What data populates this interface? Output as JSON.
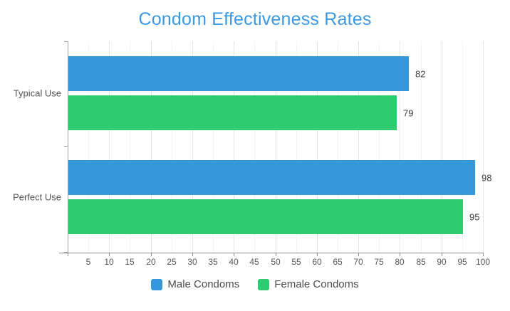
{
  "chart_data": {
    "type": "bar",
    "orientation": "horizontal",
    "title": "Condom Effectiveness Rates",
    "title_color": "#3b98e2",
    "categories": [
      "Typical Use",
      "Perfect Use"
    ],
    "series": [
      {
        "name": "Male Condoms",
        "color": "#3498db",
        "values": [
          82,
          98
        ]
      },
      {
        "name": "Female Condoms",
        "color": "#2ecc71",
        "values": [
          79,
          95
        ]
      }
    ],
    "value_labels": [
      "82",
      "79",
      "98",
      "95"
    ],
    "xlabel": "",
    "ylabel": "",
    "xlim": [
      0,
      100
    ],
    "xticks": [
      5,
      10,
      15,
      20,
      25,
      30,
      35,
      40,
      45,
      50,
      55,
      60,
      65,
      70,
      75,
      80,
      85,
      90,
      95,
      100
    ],
    "grid": true,
    "gridline_interval_major": 10,
    "gridline_interval_minor": 5,
    "axis_color": "#8f8f8f",
    "grid_color": "#e4e4e4",
    "legend_position": "bottom"
  }
}
